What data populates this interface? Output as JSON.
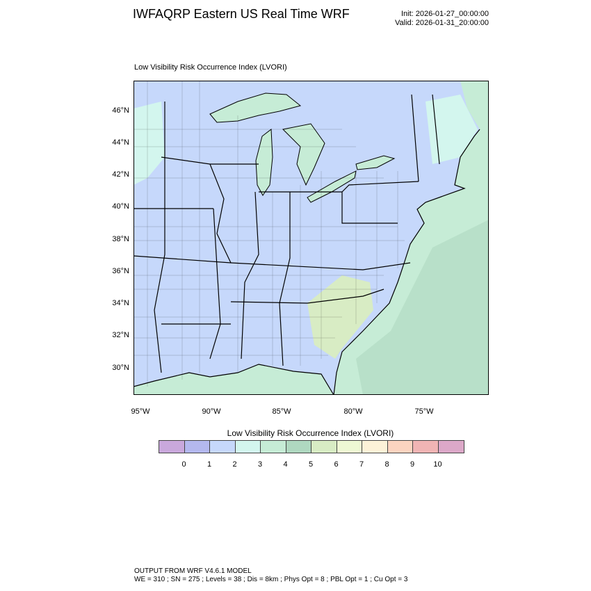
{
  "header": {
    "title": "IWFAQRP Eastern US Real Time WRF",
    "init": "Init: 2026-01-27_00:00:00",
    "valid": "Valid: 2026-01-31_20:00:00"
  },
  "map": {
    "title": "Low Visibility Risk Occurrence Index   (LVORI)",
    "lat_labels": [
      "46°N",
      "44°N",
      "42°N",
      "40°N",
      "38°N",
      "36°N",
      "34°N",
      "32°N",
      "30°N"
    ],
    "lon_labels": [
      "95°W",
      "90°W",
      "85°W",
      "80°W",
      "75°W"
    ],
    "colors": {
      "land": "#c6d8fb",
      "ocean": "#c6ecd6",
      "ocean_deep": "#afd8c0",
      "lakes": "#c6ecd6",
      "patches": "#d3f6ee",
      "southeast": "#d8ecc4"
    }
  },
  "colorbar": {
    "title": "Low Visibility Risk Occurrence Index  (LVORI)",
    "labels": [
      "0",
      "1",
      "2",
      "3",
      "4",
      "5",
      "6",
      "7",
      "8",
      "9",
      "10"
    ],
    "colors": [
      "#c9a8dc",
      "#b4b8ee",
      "#c6d8fb",
      "#d3f6ee",
      "#c6ecd6",
      "#afd8c0",
      "#d8ecc4",
      "#eef8d4",
      "#fdf2d8",
      "#fcd4c0",
      "#f0b4b4",
      "#dca8c8"
    ]
  },
  "footer": {
    "line1": "OUTPUT FROM WRF V4.6.1 MODEL",
    "line2": "WE = 310 ; SN = 275 ; Levels = 38 ; Dis = 8km ; Phys Opt = 8 ; PBL Opt = 1 ; Cu Opt = 3"
  }
}
